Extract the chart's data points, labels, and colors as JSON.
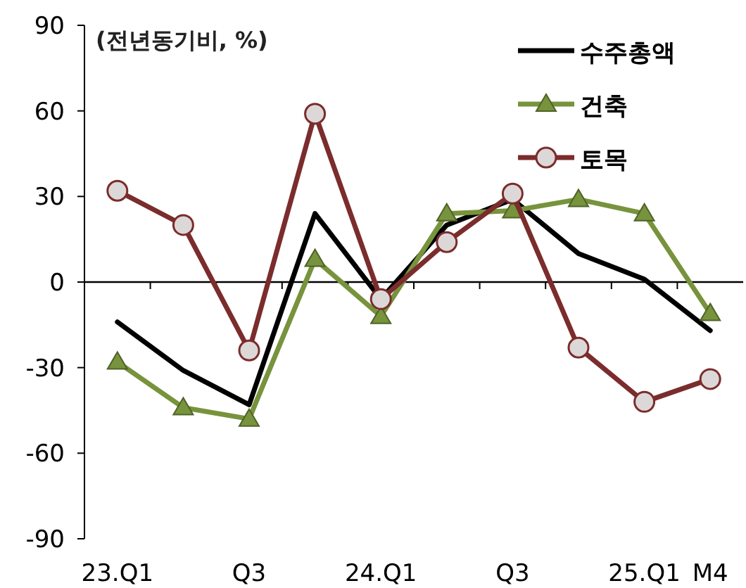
{
  "chart_data": {
    "type": "line",
    "ylabel": "(전년동기비, %)",
    "categories": [
      "23.Q1",
      null,
      "Q3",
      null,
      "24.Q1",
      null,
      "Q3",
      null,
      "25.Q1",
      "M4"
    ],
    "series": [
      {
        "name": "수주총액",
        "color": "#000000",
        "marker": "none",
        "values": [
          -14,
          -31,
          -43,
          24,
          -6,
          20,
          29,
          10,
          1,
          -17
        ]
      },
      {
        "name": "건축",
        "color": "#77933c",
        "marker": "triangle",
        "values": [
          -28,
          -44,
          -48,
          8,
          -12,
          24,
          25,
          29,
          24,
          -11
        ]
      },
      {
        "name": "토목",
        "color": "#7b2c2c",
        "marker": "circle",
        "values": [
          32,
          20,
          -24,
          59,
          -6,
          14,
          31,
          -23,
          -42,
          -34
        ]
      }
    ],
    "ylim": [
      -90,
      90
    ],
    "yticks": [
      -90,
      -60,
      -30,
      0,
      30,
      60,
      90
    ],
    "legend": "top right"
  }
}
